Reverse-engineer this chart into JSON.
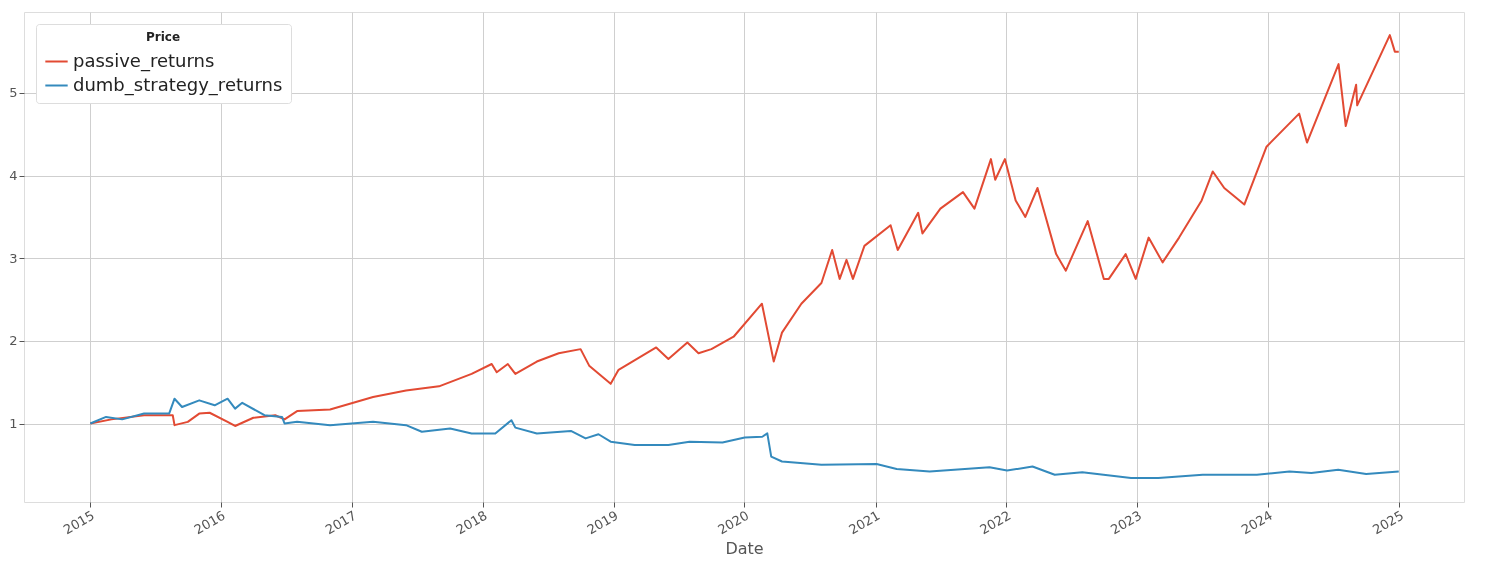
{
  "chart_data": {
    "type": "line",
    "xlabel": "Date",
    "legend_title": "Price",
    "legend": "top left",
    "grid": true,
    "line_style": "solid",
    "marker": "none",
    "xlim": [
      "2014-07-01",
      "2025-07-01"
    ],
    "xticks": [
      "2015",
      "2016",
      "2017",
      "2018",
      "2019",
      "2020",
      "2021",
      "2022",
      "2023",
      "2024",
      "2025"
    ],
    "ylim": [
      0.05,
      5.98
    ],
    "yticks": [
      1,
      2,
      3,
      4,
      5
    ],
    "series": [
      {
        "name": "passive_returns",
        "color": "#e24a33",
        "x": [
          "2015-01-02",
          "2015-03-02",
          "2015-06-01",
          "2015-08-20",
          "2015-08-25",
          "2015-10-01",
          "2015-11-02",
          "2015-12-01",
          "2016-01-20",
          "2016-02-10",
          "2016-04-01",
          "2016-06-01",
          "2016-06-27",
          "2016-08-01",
          "2016-11-01",
          "2017-03-01",
          "2017-06-01",
          "2017-09-01",
          "2017-12-01",
          "2018-01-26",
          "2018-02-09",
          "2018-03-12",
          "2018-04-02",
          "2018-06-01",
          "2018-08-01",
          "2018-10-01",
          "2018-10-25",
          "2018-12-24",
          "2019-01-15",
          "2019-04-30",
          "2019-06-03",
          "2019-07-26",
          "2019-08-26",
          "2019-10-01",
          "2019-12-02",
          "2020-02-19",
          "2020-03-23",
          "2020-04-15",
          "2020-06-08",
          "2020-08-03",
          "2020-09-02",
          "2020-09-23",
          "2020-10-12",
          "2020-10-30",
          "2020-12-01",
          "2021-02-12",
          "2021-03-04",
          "2021-04-30",
          "2021-05-12",
          "2021-07-01",
          "2021-09-02",
          "2021-10-04",
          "2021-11-19",
          "2021-12-01",
          "2021-12-28",
          "2022-01-27",
          "2022-02-23",
          "2022-03-29",
          "2022-05-20",
          "2022-06-16",
          "2022-08-16",
          "2022-09-30",
          "2022-10-14",
          "2022-11-30",
          "2022-12-28",
          "2023-02-02",
          "2023-03-13",
          "2023-04-28",
          "2023-06-30",
          "2023-07-31",
          "2023-09-01",
          "2023-10-27",
          "2023-12-28",
          "2024-03-28",
          "2024-04-19",
          "2024-07-16",
          "2024-08-05",
          "2024-09-03",
          "2024-09-06",
          "2024-12-06",
          "2024-12-20",
          "2024-12-31"
        ],
        "values": [
          1.0,
          1.05,
          1.1,
          1.1,
          0.98,
          1.02,
          1.12,
          1.13,
          1.02,
          0.97,
          1.07,
          1.1,
          1.05,
          1.15,
          1.17,
          1.32,
          1.4,
          1.45,
          1.6,
          1.72,
          1.62,
          1.72,
          1.6,
          1.75,
          1.85,
          1.9,
          1.7,
          1.48,
          1.65,
          1.92,
          1.78,
          1.98,
          1.85,
          1.9,
          2.05,
          2.45,
          1.75,
          2.1,
          2.45,
          2.7,
          3.1,
          2.75,
          2.98,
          2.75,
          3.15,
          3.4,
          3.1,
          3.55,
          3.3,
          3.6,
          3.8,
          3.6,
          4.2,
          3.95,
          4.2,
          3.7,
          3.5,
          3.85,
          3.05,
          2.85,
          3.45,
          2.75,
          2.75,
          3.05,
          2.75,
          3.25,
          2.95,
          3.25,
          3.7,
          4.05,
          3.85,
          3.65,
          4.35,
          4.75,
          4.4,
          5.35,
          4.6,
          5.1,
          4.85,
          5.7,
          5.5,
          5.5
        ]
      },
      {
        "name": "dumb_strategy_returns",
        "color": "#348abd",
        "x": [
          "2015-01-02",
          "2015-02-15",
          "2015-04-01",
          "2015-06-01",
          "2015-08-10",
          "2015-08-25",
          "2015-09-15",
          "2015-11-02",
          "2015-12-15",
          "2016-01-20",
          "2016-02-10",
          "2016-03-01",
          "2016-05-02",
          "2016-06-20",
          "2016-06-27",
          "2016-08-01",
          "2016-11-01",
          "2017-03-01",
          "2017-06-01",
          "2017-07-15",
          "2017-10-02",
          "2017-12-01",
          "2018-02-05",
          "2018-03-22",
          "2018-04-02",
          "2018-06-01",
          "2018-09-04",
          "2018-10-15",
          "2018-11-20",
          "2018-12-24",
          "2019-03-01",
          "2019-06-03",
          "2019-08-01",
          "2019-11-01",
          "2020-01-02",
          "2020-02-20",
          "2020-03-05",
          "2020-03-16",
          "2020-04-15",
          "2020-08-03",
          "2021-01-04",
          "2021-03-01",
          "2021-06-01",
          "2021-11-15",
          "2022-01-03",
          "2022-03-15",
          "2022-05-16",
          "2022-08-01",
          "2022-12-15",
          "2023-03-01",
          "2023-07-03",
          "2023-12-01",
          "2024-03-01",
          "2024-05-01",
          "2024-07-15",
          "2024-10-01",
          "2024-12-31"
        ],
        "values": [
          1.0,
          1.08,
          1.05,
          1.12,
          1.12,
          1.3,
          1.2,
          1.28,
          1.22,
          1.3,
          1.18,
          1.25,
          1.1,
          1.08,
          1.0,
          1.02,
          0.98,
          1.02,
          0.98,
          0.9,
          0.94,
          0.88,
          0.88,
          1.04,
          0.95,
          0.88,
          0.91,
          0.82,
          0.87,
          0.78,
          0.74,
          0.74,
          0.78,
          0.77,
          0.83,
          0.84,
          0.88,
          0.6,
          0.54,
          0.5,
          0.51,
          0.45,
          0.42,
          0.47,
          0.43,
          0.48,
          0.38,
          0.41,
          0.34,
          0.34,
          0.38,
          0.38,
          0.42,
          0.4,
          0.44,
          0.39,
          0.42
        ]
      }
    ]
  }
}
